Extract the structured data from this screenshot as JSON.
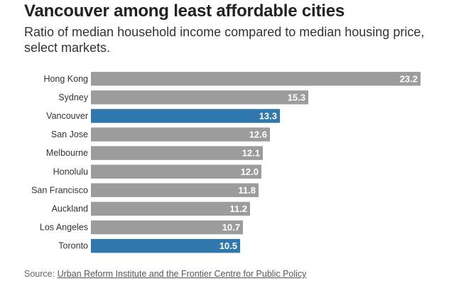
{
  "title": "Vancouver among least affordable cities",
  "subtitle": "Ratio of median household income compared to median housing price, select markets.",
  "source": {
    "prefix": "Source: ",
    "link_text": "Urban Reform Institute and the Frontier Centre for Public Policy"
  },
  "colors": {
    "default_bar": "#9c9c9c",
    "highlight_bar": "#2f77ad",
    "value_label": "#ffffff",
    "category_label": "#333333"
  },
  "chart_data": {
    "type": "bar",
    "orientation": "horizontal",
    "title": "Vancouver among least affordable cities",
    "subtitle": "Ratio of median household income compared to median housing price, select markets.",
    "categories": [
      "Hong Kong",
      "Sydney",
      "Vancouver",
      "San Jose",
      "Melbourne",
      "Honolulu",
      "San Francisco",
      "Auckland",
      "Los Angeles",
      "Toronto"
    ],
    "values": [
      23.2,
      15.3,
      13.3,
      12.6,
      12.1,
      12.0,
      11.8,
      11.2,
      10.7,
      10.5
    ],
    "value_labels": [
      "23.2",
      "15.3",
      "13.3",
      "12.6",
      "12.1",
      "12.0",
      "11.8",
      "11.2",
      "10.7",
      "10.5"
    ],
    "highlighted": [
      "Vancouver",
      "Toronto"
    ],
    "xlim": [
      0,
      23.2
    ],
    "xlabel": "",
    "ylabel": "",
    "grid": false,
    "legend": "none"
  }
}
